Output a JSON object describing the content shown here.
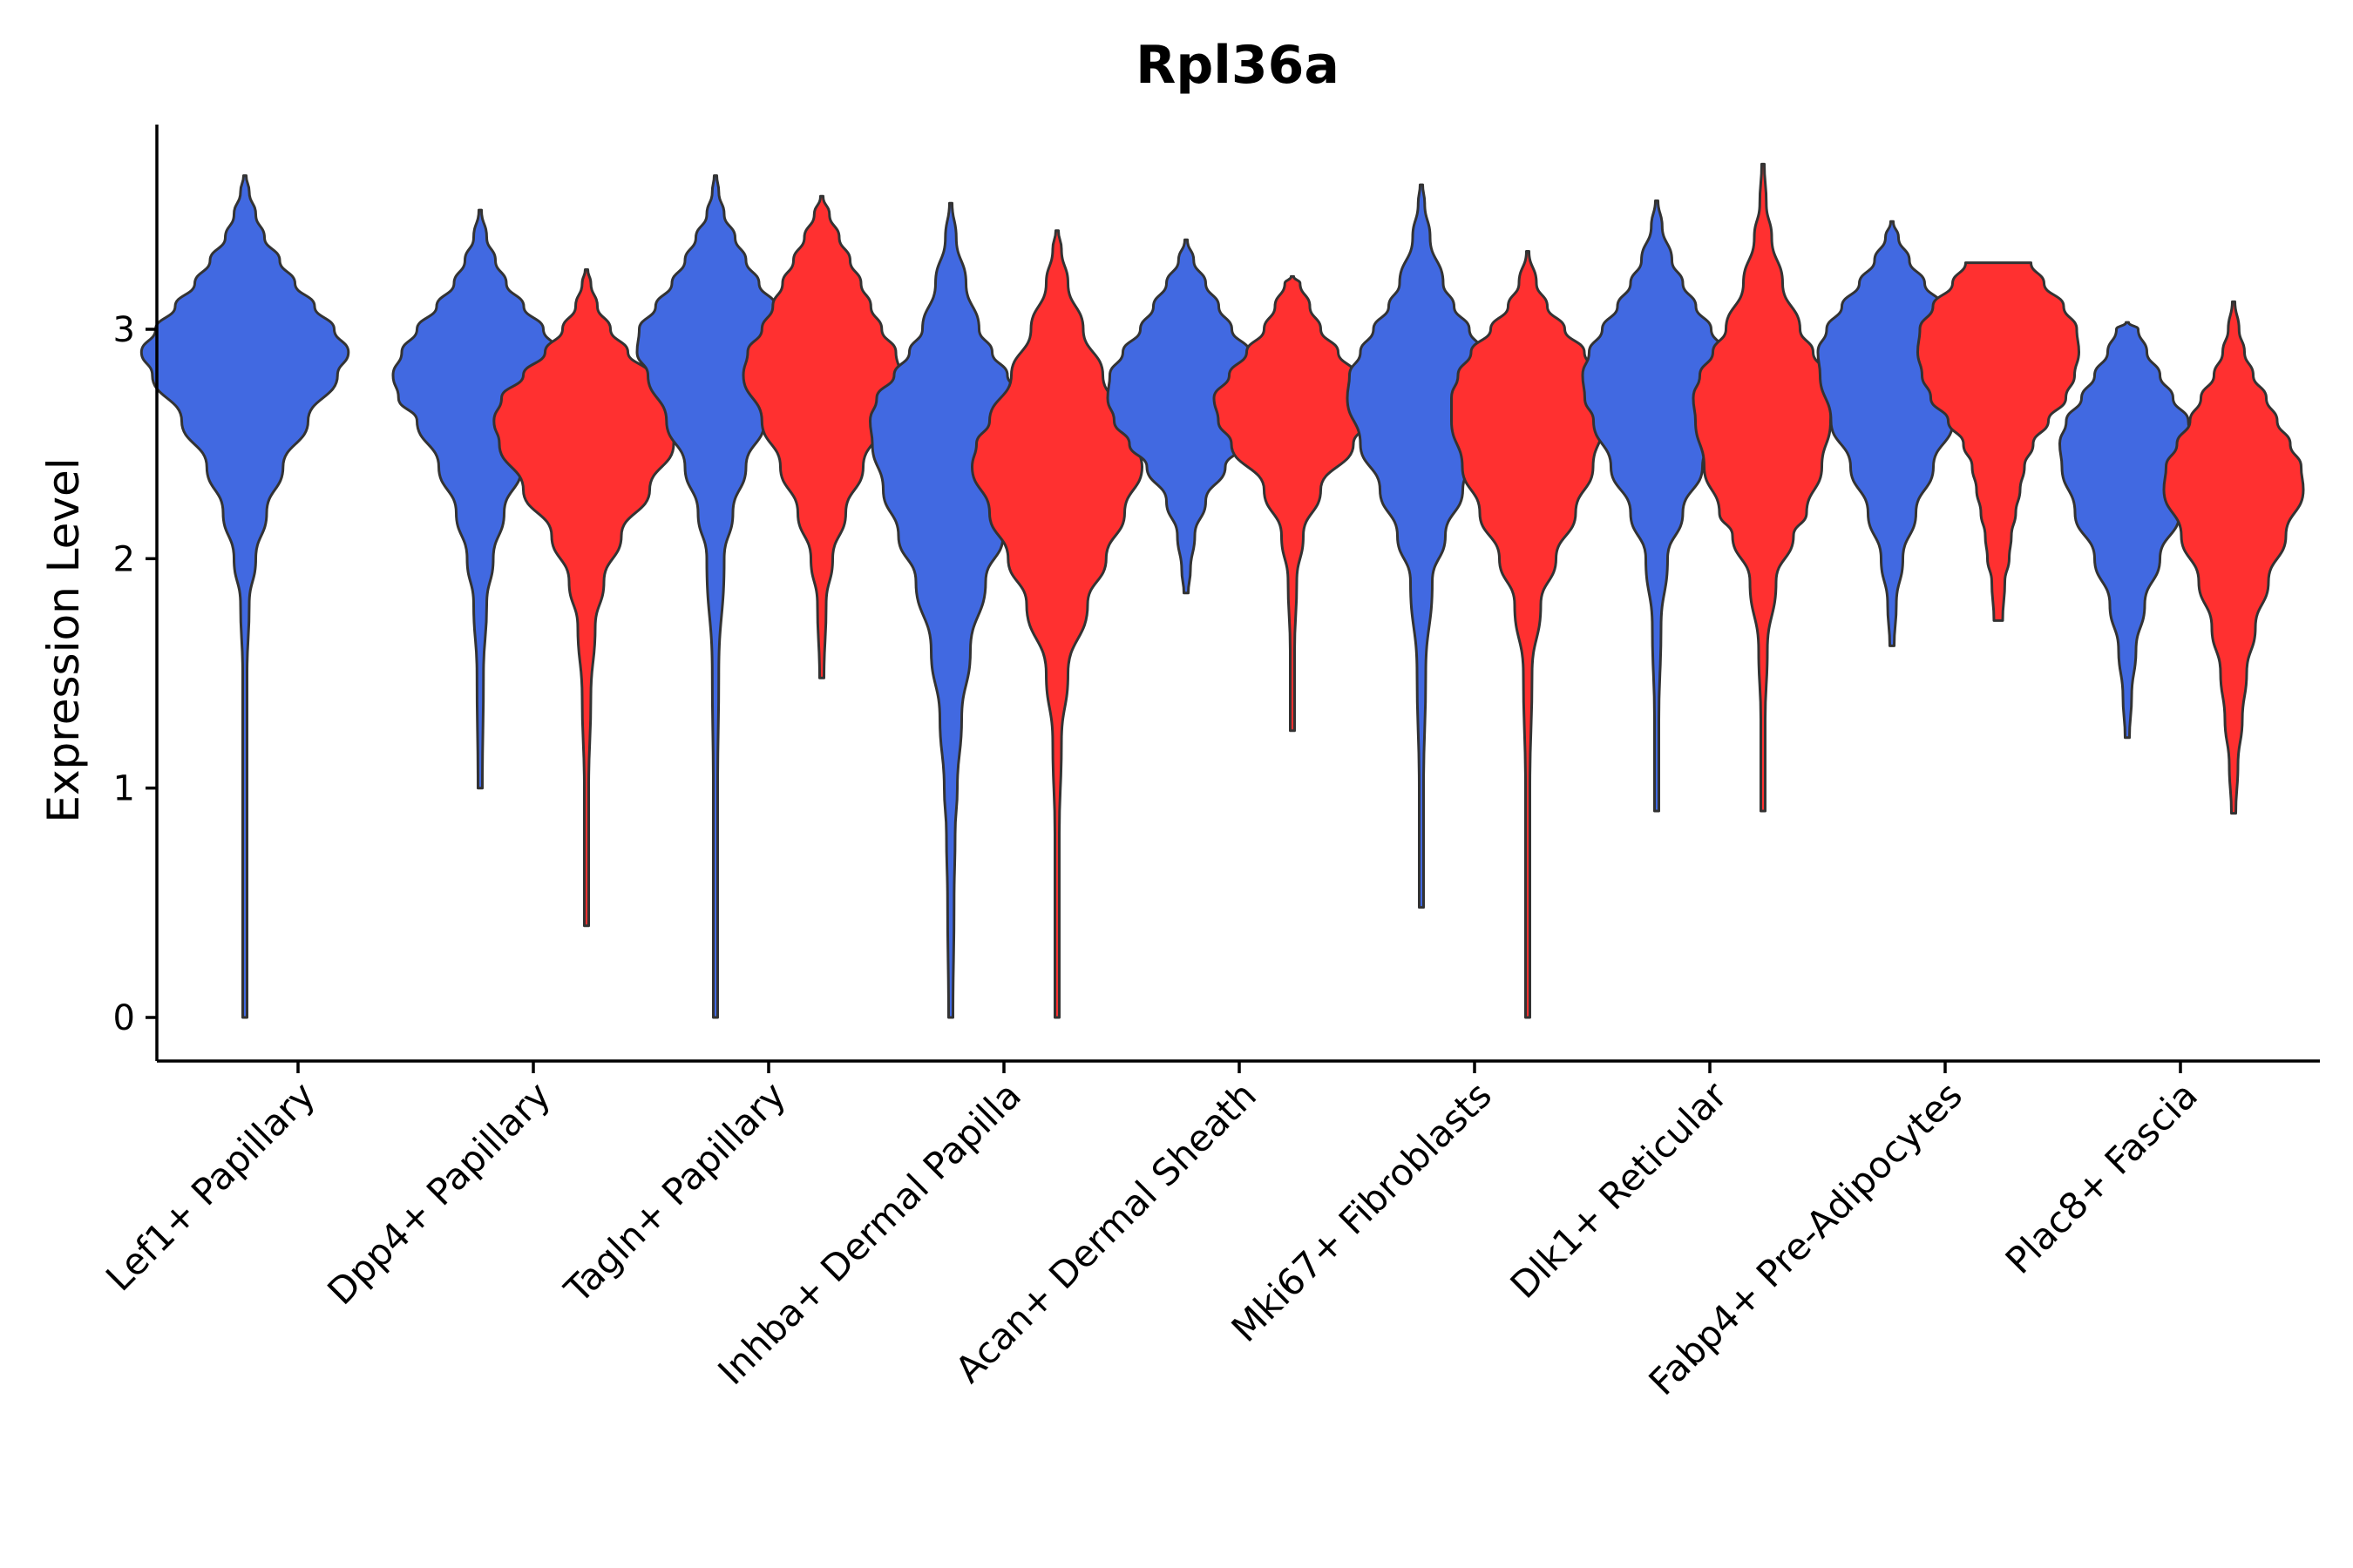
{
  "chart_data": {
    "type": "violin",
    "title": "Rpl36a",
    "xlabel": "",
    "ylabel": "Expression Level",
    "ylim": [
      -0.19,
      3.9
    ],
    "yticks": [
      0,
      1,
      2,
      3
    ],
    "grid": false,
    "legend": "none",
    "series_colors": [
      "#4169E1",
      "#FF3030"
    ],
    "categories": [
      "Lef1+ Papillary",
      "Dpp4+ Papillary",
      "Tagln+ Papillary",
      "Inhba+ Dermal Papilla",
      "Acan+ Dermal Sheath",
      "Mki67+ Fibroblasts",
      "Dlk1+ Reticular",
      "Fabp4+ Pre-Adipocytes",
      "Plac8+ Fascia"
    ],
    "violins": [
      {
        "category": "Lef1+ Papillary",
        "series": 0,
        "min": 0.0,
        "max": 3.67,
        "profile": [
          [
            0.0,
            0.02
          ],
          [
            0.5,
            0.02
          ],
          [
            1.0,
            0.02
          ],
          [
            1.5,
            0.02
          ],
          [
            1.8,
            0.04
          ],
          [
            2.0,
            0.1
          ],
          [
            2.2,
            0.2
          ],
          [
            2.4,
            0.35
          ],
          [
            2.6,
            0.58
          ],
          [
            2.8,
            0.85
          ],
          [
            2.9,
            0.95
          ],
          [
            3.0,
            0.82
          ],
          [
            3.1,
            0.64
          ],
          [
            3.2,
            0.46
          ],
          [
            3.3,
            0.32
          ],
          [
            3.4,
            0.18
          ],
          [
            3.5,
            0.1
          ],
          [
            3.6,
            0.04
          ],
          [
            3.67,
            0.0
          ]
        ]
      },
      {
        "category": "Dpp4+ Papillary",
        "series": 0,
        "min": 1.0,
        "max": 3.52,
        "profile": [
          [
            1.0,
            0.02
          ],
          [
            1.5,
            0.03
          ],
          [
            1.8,
            0.06
          ],
          [
            2.0,
            0.12
          ],
          [
            2.2,
            0.22
          ],
          [
            2.4,
            0.38
          ],
          [
            2.6,
            0.58
          ],
          [
            2.7,
            0.75
          ],
          [
            2.8,
            0.8
          ],
          [
            2.9,
            0.72
          ],
          [
            3.0,
            0.58
          ],
          [
            3.1,
            0.4
          ],
          [
            3.2,
            0.24
          ],
          [
            3.3,
            0.14
          ],
          [
            3.4,
            0.06
          ],
          [
            3.52,
            0.0
          ]
        ]
      },
      {
        "category": "Dpp4+ Papillary",
        "series": 1,
        "min": 0.4,
        "max": 3.26,
        "profile": [
          [
            0.4,
            0.02
          ],
          [
            1.0,
            0.02
          ],
          [
            1.4,
            0.04
          ],
          [
            1.7,
            0.08
          ],
          [
            1.9,
            0.16
          ],
          [
            2.1,
            0.32
          ],
          [
            2.3,
            0.58
          ],
          [
            2.5,
            0.8
          ],
          [
            2.6,
            0.85
          ],
          [
            2.7,
            0.78
          ],
          [
            2.8,
            0.58
          ],
          [
            2.9,
            0.38
          ],
          [
            3.0,
            0.22
          ],
          [
            3.1,
            0.1
          ],
          [
            3.2,
            0.04
          ],
          [
            3.26,
            0.0
          ]
        ]
      },
      {
        "category": "Tagln+ Papillary",
        "series": 0,
        "min": 0.0,
        "max": 3.67,
        "profile": [
          [
            0.0,
            0.02
          ],
          [
            1.0,
            0.02
          ],
          [
            1.5,
            0.03
          ],
          [
            2.0,
            0.08
          ],
          [
            2.2,
            0.16
          ],
          [
            2.4,
            0.28
          ],
          [
            2.6,
            0.45
          ],
          [
            2.8,
            0.62
          ],
          [
            2.9,
            0.72
          ],
          [
            3.0,
            0.7
          ],
          [
            3.1,
            0.55
          ],
          [
            3.2,
            0.4
          ],
          [
            3.3,
            0.28
          ],
          [
            3.4,
            0.18
          ],
          [
            3.5,
            0.08
          ],
          [
            3.6,
            0.03
          ],
          [
            3.67,
            0.0
          ]
        ]
      },
      {
        "category": "Tagln+ Papillary",
        "series": 1,
        "min": 1.48,
        "max": 3.58,
        "profile": [
          [
            1.48,
            0.02
          ],
          [
            1.8,
            0.04
          ],
          [
            2.0,
            0.1
          ],
          [
            2.2,
            0.22
          ],
          [
            2.4,
            0.38
          ],
          [
            2.6,
            0.55
          ],
          [
            2.8,
            0.72
          ],
          [
            2.9,
            0.68
          ],
          [
            3.0,
            0.55
          ],
          [
            3.1,
            0.45
          ],
          [
            3.2,
            0.36
          ],
          [
            3.3,
            0.26
          ],
          [
            3.4,
            0.16
          ],
          [
            3.5,
            0.07
          ],
          [
            3.58,
            0.0
          ]
        ]
      },
      {
        "category": "Inhba+ Dermal Papilla",
        "series": 0,
        "min": 0.0,
        "max": 3.55,
        "profile": [
          [
            0.0,
            0.02
          ],
          [
            0.5,
            0.03
          ],
          [
            0.8,
            0.04
          ],
          [
            1.0,
            0.06
          ],
          [
            1.3,
            0.1
          ],
          [
            1.6,
            0.18
          ],
          [
            1.9,
            0.32
          ],
          [
            2.1,
            0.48
          ],
          [
            2.3,
            0.62
          ],
          [
            2.5,
            0.72
          ],
          [
            2.6,
            0.74
          ],
          [
            2.7,
            0.68
          ],
          [
            2.8,
            0.52
          ],
          [
            2.9,
            0.38
          ],
          [
            3.0,
            0.26
          ],
          [
            3.2,
            0.14
          ],
          [
            3.4,
            0.05
          ],
          [
            3.55,
            0.0
          ]
        ]
      },
      {
        "category": "Inhba+ Dermal Papilla",
        "series": 1,
        "min": 0.0,
        "max": 3.43,
        "profile": [
          [
            0.0,
            0.02
          ],
          [
            0.8,
            0.02
          ],
          [
            1.2,
            0.04
          ],
          [
            1.5,
            0.1
          ],
          [
            1.8,
            0.28
          ],
          [
            2.0,
            0.45
          ],
          [
            2.2,
            0.62
          ],
          [
            2.4,
            0.78
          ],
          [
            2.5,
            0.74
          ],
          [
            2.6,
            0.62
          ],
          [
            2.8,
            0.42
          ],
          [
            3.0,
            0.24
          ],
          [
            3.2,
            0.1
          ],
          [
            3.35,
            0.04
          ],
          [
            3.43,
            0.0
          ]
        ]
      },
      {
        "category": "Acan+ Dermal Sheath",
        "series": 0,
        "min": 1.85,
        "max": 3.39,
        "profile": [
          [
            1.85,
            0.02
          ],
          [
            1.95,
            0.04
          ],
          [
            2.1,
            0.08
          ],
          [
            2.25,
            0.18
          ],
          [
            2.4,
            0.36
          ],
          [
            2.5,
            0.52
          ],
          [
            2.6,
            0.66
          ],
          [
            2.7,
            0.72
          ],
          [
            2.8,
            0.7
          ],
          [
            2.9,
            0.58
          ],
          [
            3.0,
            0.42
          ],
          [
            3.1,
            0.3
          ],
          [
            3.2,
            0.18
          ],
          [
            3.3,
            0.07
          ],
          [
            3.39,
            0.0
          ]
        ]
      },
      {
        "category": "Acan+ Dermal Sheath",
        "series": 1,
        "min": 1.25,
        "max": 3.23,
        "profile": [
          [
            1.25,
            0.02
          ],
          [
            1.6,
            0.02
          ],
          [
            1.9,
            0.04
          ],
          [
            2.1,
            0.1
          ],
          [
            2.3,
            0.26
          ],
          [
            2.5,
            0.56
          ],
          [
            2.6,
            0.68
          ],
          [
            2.7,
            0.72
          ],
          [
            2.8,
            0.58
          ],
          [
            2.9,
            0.42
          ],
          [
            3.0,
            0.26
          ],
          [
            3.1,
            0.16
          ],
          [
            3.2,
            0.07
          ],
          [
            3.23,
            0.0
          ]
        ]
      },
      {
        "category": "Mki67+ Fibroblasts",
        "series": 0,
        "min": 0.48,
        "max": 3.63,
        "profile": [
          [
            0.48,
            0.02
          ],
          [
            1.0,
            0.02
          ],
          [
            1.5,
            0.04
          ],
          [
            1.9,
            0.1
          ],
          [
            2.1,
            0.22
          ],
          [
            2.3,
            0.38
          ],
          [
            2.5,
            0.56
          ],
          [
            2.7,
            0.68
          ],
          [
            2.8,
            0.66
          ],
          [
            2.9,
            0.56
          ],
          [
            3.0,
            0.44
          ],
          [
            3.1,
            0.3
          ],
          [
            3.2,
            0.2
          ],
          [
            3.4,
            0.08
          ],
          [
            3.55,
            0.03
          ],
          [
            3.63,
            0.0
          ]
        ]
      },
      {
        "category": "Mki67+ Fibroblasts",
        "series": 1,
        "min": 0.0,
        "max": 3.34,
        "profile": [
          [
            0.0,
            0.02
          ],
          [
            1.0,
            0.02
          ],
          [
            1.5,
            0.04
          ],
          [
            1.8,
            0.12
          ],
          [
            2.0,
            0.26
          ],
          [
            2.2,
            0.44
          ],
          [
            2.4,
            0.6
          ],
          [
            2.6,
            0.7
          ],
          [
            2.7,
            0.7
          ],
          [
            2.8,
            0.64
          ],
          [
            2.9,
            0.52
          ],
          [
            3.0,
            0.34
          ],
          [
            3.1,
            0.18
          ],
          [
            3.2,
            0.08
          ],
          [
            3.34,
            0.0
          ]
        ]
      },
      {
        "category": "Dlk1+ Reticular",
        "series": 0,
        "min": 0.9,
        "max": 3.56,
        "profile": [
          [
            0.9,
            0.02
          ],
          [
            1.3,
            0.02
          ],
          [
            1.7,
            0.04
          ],
          [
            2.0,
            0.1
          ],
          [
            2.2,
            0.24
          ],
          [
            2.4,
            0.42
          ],
          [
            2.6,
            0.58
          ],
          [
            2.7,
            0.66
          ],
          [
            2.8,
            0.68
          ],
          [
            2.9,
            0.62
          ],
          [
            3.0,
            0.5
          ],
          [
            3.1,
            0.36
          ],
          [
            3.2,
            0.24
          ],
          [
            3.3,
            0.14
          ],
          [
            3.45,
            0.05
          ],
          [
            3.56,
            0.0
          ]
        ]
      },
      {
        "category": "Dlk1+ Reticular",
        "series": 1,
        "min": 0.9,
        "max": 3.72,
        "profile": [
          [
            0.9,
            0.02
          ],
          [
            1.3,
            0.02
          ],
          [
            1.6,
            0.04
          ],
          [
            1.9,
            0.12
          ],
          [
            2.1,
            0.28
          ],
          [
            2.2,
            0.4
          ],
          [
            2.4,
            0.54
          ],
          [
            2.6,
            0.62
          ],
          [
            2.7,
            0.64
          ],
          [
            2.8,
            0.58
          ],
          [
            2.9,
            0.46
          ],
          [
            3.0,
            0.34
          ],
          [
            3.2,
            0.18
          ],
          [
            3.4,
            0.08
          ],
          [
            3.55,
            0.03
          ],
          [
            3.72,
            0.0
          ]
        ]
      },
      {
        "category": "Fabp4+ Pre-Adipocytes",
        "series": 0,
        "min": 1.62,
        "max": 3.47,
        "profile": [
          [
            1.62,
            0.02
          ],
          [
            1.8,
            0.04
          ],
          [
            2.0,
            0.1
          ],
          [
            2.2,
            0.22
          ],
          [
            2.4,
            0.38
          ],
          [
            2.6,
            0.56
          ],
          [
            2.8,
            0.66
          ],
          [
            2.9,
            0.68
          ],
          [
            3.0,
            0.6
          ],
          [
            3.1,
            0.46
          ],
          [
            3.2,
            0.3
          ],
          [
            3.3,
            0.16
          ],
          [
            3.4,
            0.06
          ],
          [
            3.47,
            0.0
          ]
        ]
      },
      {
        "category": "Fabp4+ Pre-Adipocytes",
        "series": 1,
        "min": 1.73,
        "max": 3.29,
        "profile": [
          [
            1.73,
            0.04
          ],
          [
            1.9,
            0.06
          ],
          [
            2.0,
            0.1
          ],
          [
            2.1,
            0.12
          ],
          [
            2.2,
            0.16
          ],
          [
            2.3,
            0.2
          ],
          [
            2.4,
            0.24
          ],
          [
            2.5,
            0.32
          ],
          [
            2.6,
            0.46
          ],
          [
            2.7,
            0.62
          ],
          [
            2.8,
            0.7
          ],
          [
            2.9,
            0.74
          ],
          [
            3.0,
            0.72
          ],
          [
            3.1,
            0.6
          ],
          [
            3.2,
            0.42
          ],
          [
            3.29,
            0.3
          ]
        ]
      },
      {
        "category": "Plac8+ Fascia",
        "series": 0,
        "min": 1.22,
        "max": 3.03,
        "profile": [
          [
            1.22,
            0.02
          ],
          [
            1.4,
            0.04
          ],
          [
            1.6,
            0.08
          ],
          [
            1.8,
            0.16
          ],
          [
            2.0,
            0.3
          ],
          [
            2.2,
            0.48
          ],
          [
            2.4,
            0.6
          ],
          [
            2.5,
            0.62
          ],
          [
            2.6,
            0.56
          ],
          [
            2.7,
            0.42
          ],
          [
            2.8,
            0.3
          ],
          [
            2.9,
            0.18
          ],
          [
            3.0,
            0.1
          ],
          [
            3.03,
            0.0
          ]
        ]
      },
      {
        "category": "Plac8+ Fascia",
        "series": 1,
        "min": 0.89,
        "max": 3.12,
        "profile": [
          [
            0.89,
            0.02
          ],
          [
            1.1,
            0.04
          ],
          [
            1.3,
            0.08
          ],
          [
            1.5,
            0.12
          ],
          [
            1.7,
            0.2
          ],
          [
            1.9,
            0.32
          ],
          [
            2.1,
            0.48
          ],
          [
            2.3,
            0.64
          ],
          [
            2.4,
            0.62
          ],
          [
            2.5,
            0.52
          ],
          [
            2.6,
            0.4
          ],
          [
            2.7,
            0.3
          ],
          [
            2.8,
            0.18
          ],
          [
            2.9,
            0.1
          ],
          [
            3.0,
            0.05
          ],
          [
            3.12,
            0.0
          ]
        ]
      }
    ]
  }
}
